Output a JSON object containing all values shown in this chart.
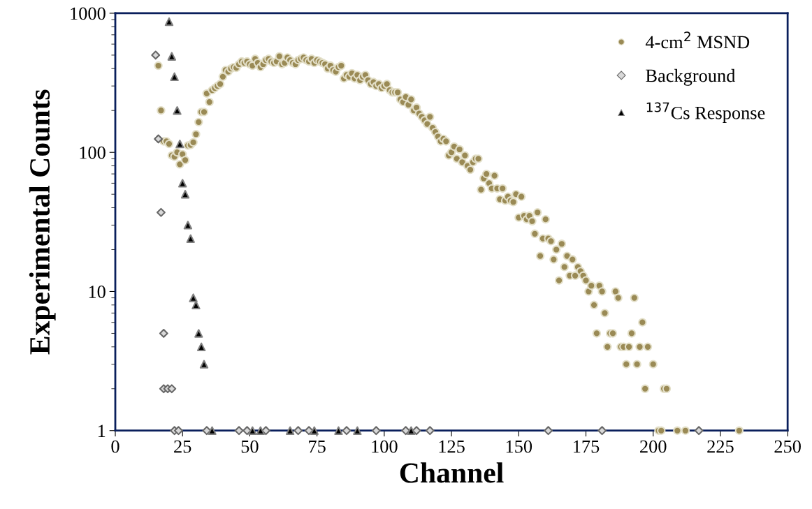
{
  "chart_data": {
    "type": "scatter",
    "xlabel": "Channel",
    "ylabel": "Experimental Counts",
    "log": "y",
    "xlim": [
      0,
      250
    ],
    "ylim": [
      1,
      1000
    ],
    "xticks": [
      0,
      25,
      50,
      75,
      100,
      125,
      150,
      175,
      200,
      225,
      250
    ],
    "yticks": [
      1,
      10,
      100,
      1000
    ],
    "grid": false,
    "legend": "top right",
    "series": [
      {
        "name": "4-cm$^{2}$ MSND",
        "color": "#9a8a55",
        "marker": "circle",
        "x": [
          16,
          17,
          18,
          19,
          20,
          21,
          22,
          23,
          24,
          25,
          26,
          27,
          28,
          29,
          30,
          31,
          32,
          33,
          34,
          35,
          36,
          37,
          38,
          39,
          40,
          41,
          42,
          43,
          44,
          45,
          46,
          47,
          48,
          49,
          50,
          51,
          52,
          53,
          54,
          55,
          56,
          57,
          58,
          59,
          60,
          61,
          62,
          63,
          64,
          65,
          66,
          67,
          68,
          69,
          70,
          71,
          72,
          73,
          74,
          75,
          76,
          77,
          78,
          79,
          80,
          81,
          82,
          83,
          84,
          85,
          86,
          87,
          88,
          89,
          90,
          91,
          92,
          93,
          94,
          95,
          96,
          97,
          98,
          99,
          100,
          101,
          102,
          103,
          104,
          105,
          106,
          107,
          108,
          109,
          110,
          111,
          112,
          113,
          114,
          115,
          116,
          117,
          118,
          119,
          120,
          121,
          122,
          123,
          124,
          125,
          126,
          127,
          128,
          129,
          130,
          131,
          132,
          133,
          134,
          135,
          136,
          137,
          138,
          139,
          140,
          141,
          142,
          143,
          144,
          145,
          146,
          147,
          148,
          149,
          150,
          151,
          152,
          153,
          154,
          155,
          156,
          157,
          158,
          159,
          160,
          161,
          162,
          163,
          164,
          165,
          166,
          167,
          168,
          169,
          170,
          171,
          172,
          173,
          174,
          175,
          176,
          177,
          178,
          179,
          180,
          181,
          182,
          183,
          184,
          185,
          186,
          187,
          188,
          189,
          190,
          191,
          192,
          193,
          194,
          195,
          196,
          197,
          198,
          200,
          202,
          203,
          204,
          205,
          209,
          212,
          232
        ],
        "values": [
          420,
          200,
          120,
          120,
          115,
          95,
          93,
          100,
          82,
          97,
          88,
          112,
          113,
          118,
          135,
          165,
          195,
          195,
          265,
          230,
          280,
          290,
          300,
          310,
          350,
          390,
          380,
          400,
          410,
          405,
          430,
          450,
          440,
          450,
          430,
          420,
          470,
          440,
          410,
          430,
          460,
          470,
          450,
          440,
          450,
          490,
          430,
          440,
          480,
          460,
          440,
          430,
          460,
          470,
          480,
          460,
          450,
          470,
          440,
          460,
          450,
          440,
          430,
          400,
          420,
          390,
          380,
          410,
          420,
          340,
          360,
          350,
          370,
          340,
          360,
          330,
          350,
          360,
          330,
          310,
          320,
          300,
          310,
          290,
          300,
          310,
          280,
          270,
          270,
          270,
          240,
          230,
          250,
          220,
          240,
          200,
          210,
          190,
          180,
          170,
          160,
          180,
          150,
          140,
          130,
          120,
          125,
          120,
          95,
          100,
          110,
          90,
          105,
          85,
          95,
          80,
          75,
          85,
          90,
          90,
          54,
          65,
          70,
          60,
          55,
          68,
          55,
          46,
          55,
          45,
          48,
          45,
          44,
          50,
          34,
          48,
          35,
          33,
          35,
          32,
          26,
          37,
          18,
          24,
          33,
          24,
          23,
          17,
          20,
          12,
          22,
          15,
          18,
          13,
          17,
          13,
          15,
          14,
          13,
          12,
          10,
          11,
          8,
          5,
          11,
          10,
          7,
          4,
          5,
          5,
          10,
          9,
          4,
          4,
          3,
          4,
          5,
          9,
          3,
          4,
          6,
          2,
          4,
          3,
          1,
          1,
          2,
          2,
          1,
          1,
          1
        ]
      },
      {
        "name": "Background",
        "color": "#d9d9d9",
        "marker": "diamond",
        "x": [
          15,
          16,
          17,
          18,
          18,
          19.5,
          21,
          22,
          23.5,
          34,
          46,
          49,
          56,
          68,
          72,
          86,
          97,
          108,
          112,
          117,
          161,
          181,
          217
        ],
        "values": [
          500,
          125,
          37,
          5,
          2,
          2,
          2,
          1,
          1,
          1,
          1,
          1,
          1,
          1,
          1,
          1,
          1,
          1,
          1,
          1,
          1,
          1,
          1
        ]
      },
      {
        "name": "$^{137}$Cs Response",
        "color": "#000000",
        "marker": "triangle",
        "x": [
          20,
          21,
          22,
          23,
          24,
          25,
          26,
          27,
          28,
          29,
          30,
          31,
          32,
          33,
          36,
          51,
          54,
          65,
          74,
          83,
          90,
          110
        ],
        "values": [
          870,
          490,
          350,
          200,
          115,
          60,
          50,
          30,
          24,
          9,
          8,
          5,
          4,
          3,
          1,
          1,
          1,
          1,
          1,
          1,
          1,
          1
        ]
      }
    ]
  }
}
